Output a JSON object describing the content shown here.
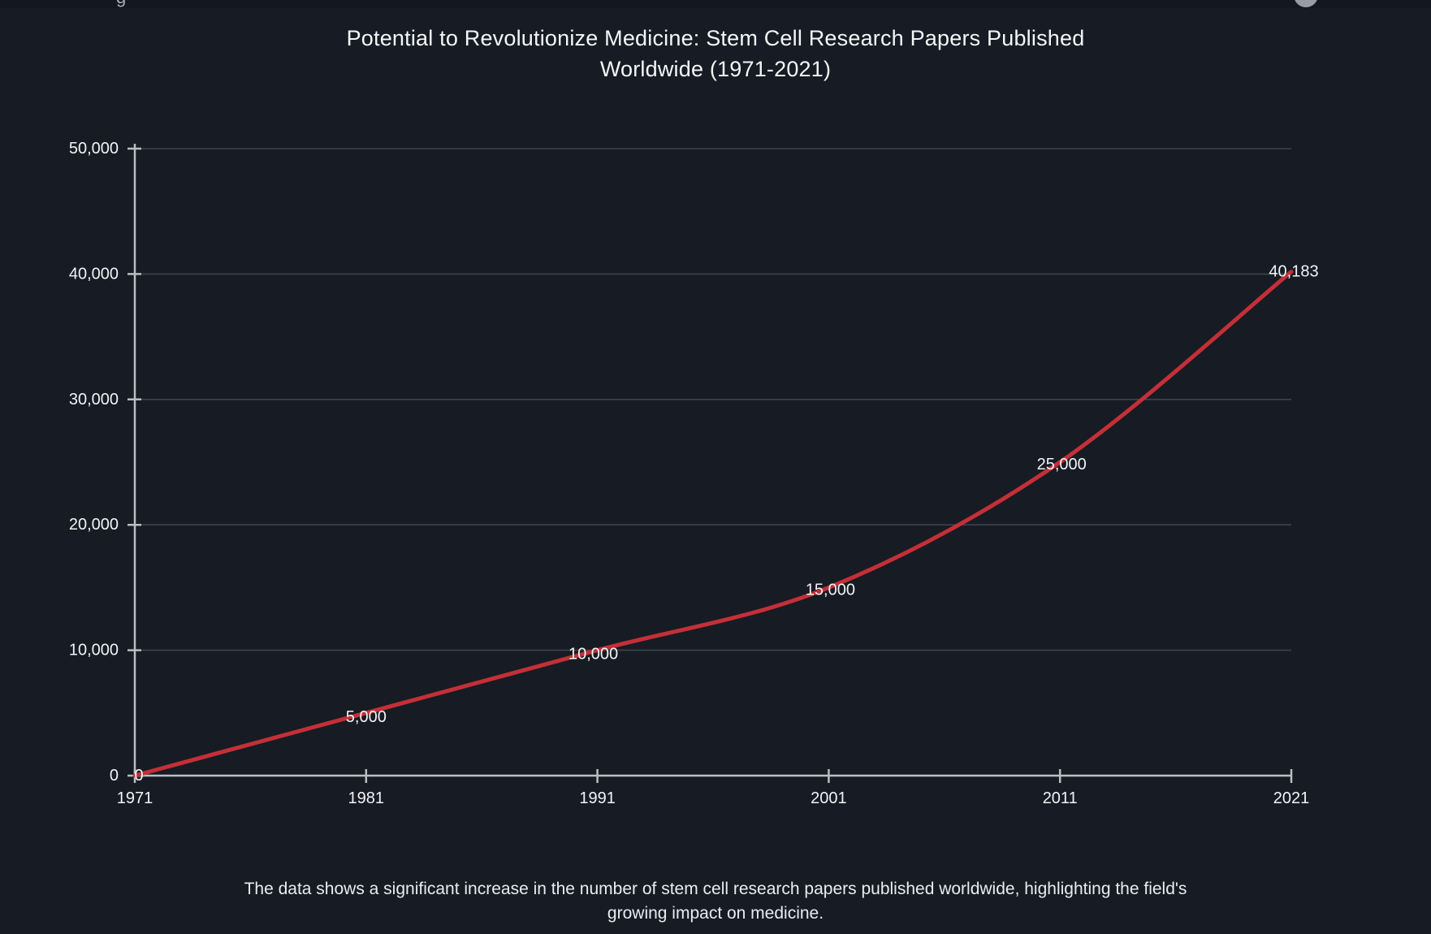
{
  "page": {
    "background_color": "#171b23",
    "title_lines": [
      "Potential to Revolutionize Medicine: Stem Cell Research Papers Published",
      "Worldwide (1971-2021)"
    ],
    "caption_lines": [
      "The data shows a significant increase in the number of stem cell research papers published worldwide, highlighting the field's",
      "growing impact on medicine."
    ],
    "top_remnant": {
      "partial_text": "g"
    }
  },
  "chart_data": {
    "type": "line",
    "title": "Potential to Revolutionize Medicine: Stem Cell Research Papers Published Worldwide (1971-2021)",
    "caption": "The data shows a significant increase in the number of stem cell research papers published worldwide, highlighting the field's growing impact on medicine.",
    "x": [
      1971,
      1981,
      1991,
      2001,
      2011,
      2021
    ],
    "x_tick_labels": [
      "1971",
      "1981",
      "1991",
      "2001",
      "2011",
      "2021"
    ],
    "values": [
      0,
      5000,
      10000,
      15000,
      25000,
      40183
    ],
    "point_labels": [
      "0",
      "5,000",
      "10,000",
      "15,000",
      "25,000",
      "40,183"
    ],
    "y_ticks": [
      0,
      10000,
      20000,
      30000,
      40000,
      50000
    ],
    "y_tick_labels": [
      "0",
      "10,000",
      "20,000",
      "30,000",
      "40,000",
      "50,000"
    ],
    "ylim": [
      0,
      50000
    ],
    "xlabel": "",
    "ylabel": "",
    "grid": true,
    "legend": "none",
    "line_color": "#c42f38",
    "grid_color": "#3e434b",
    "axis_color": "#b9bec4",
    "text_color": "#f1f3f5",
    "label_offsets": [
      [
        5,
        0
      ],
      [
        0,
        5
      ],
      [
        -5,
        5
      ],
      [
        2,
        3
      ],
      [
        2,
        3
      ],
      [
        3,
        0
      ]
    ]
  }
}
